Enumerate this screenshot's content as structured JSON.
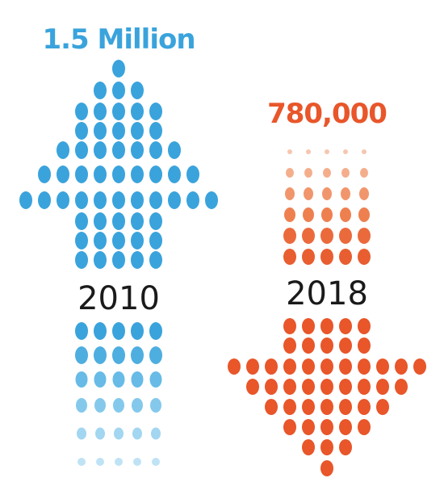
{
  "items": [
    {
      "amount": "1.5 Million",
      "year": "2010"
    },
    {
      "amount": "780,000",
      "year": "2018"
    }
  ]
}
